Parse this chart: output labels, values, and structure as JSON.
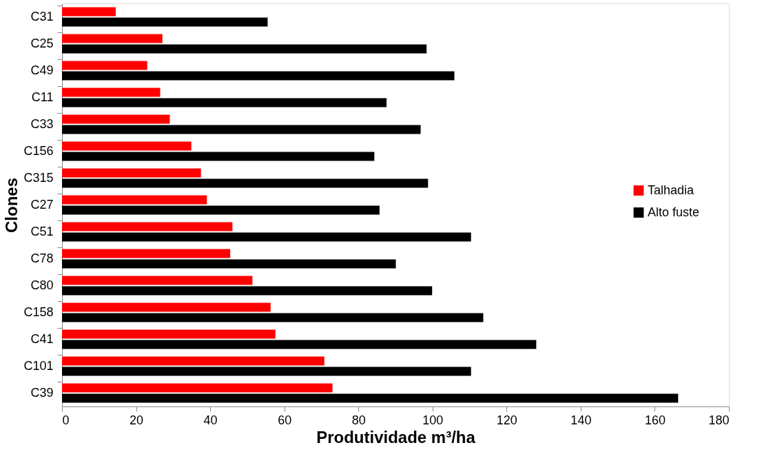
{
  "chart_data": {
    "type": "bar",
    "orientation": "horizontal",
    "xlabel": "Produtividade m³/ha",
    "ylabel": "Clones",
    "categories": [
      "C31",
      "C25",
      "C49",
      "C11",
      "C33",
      "C156",
      "C315",
      "C27",
      "C51",
      "C78",
      "C80",
      "C158",
      "C41",
      "C101",
      "C39"
    ],
    "series": [
      {
        "name": "Talhadia",
        "color": "#ff0000",
        "values": [
          14.5,
          27.1,
          23.0,
          26.5,
          29.1,
          34.9,
          37.5,
          39.1,
          46.0,
          45.4,
          51.4,
          56.3,
          57.6,
          70.8,
          73.0
        ]
      },
      {
        "name": "Alto fuste",
        "color": "#000000",
        "values": [
          55.5,
          98.4,
          105.9,
          87.6,
          96.8,
          84.3,
          98.8,
          85.7,
          110.4,
          90.1,
          99.9,
          113.7,
          128.0,
          110.4,
          166.3
        ]
      }
    ],
    "xlim": [
      0,
      180
    ],
    "xticks": [
      0,
      20,
      40,
      60,
      80,
      100,
      120,
      140,
      160,
      180
    ],
    "grid": false,
    "legend": "right"
  }
}
